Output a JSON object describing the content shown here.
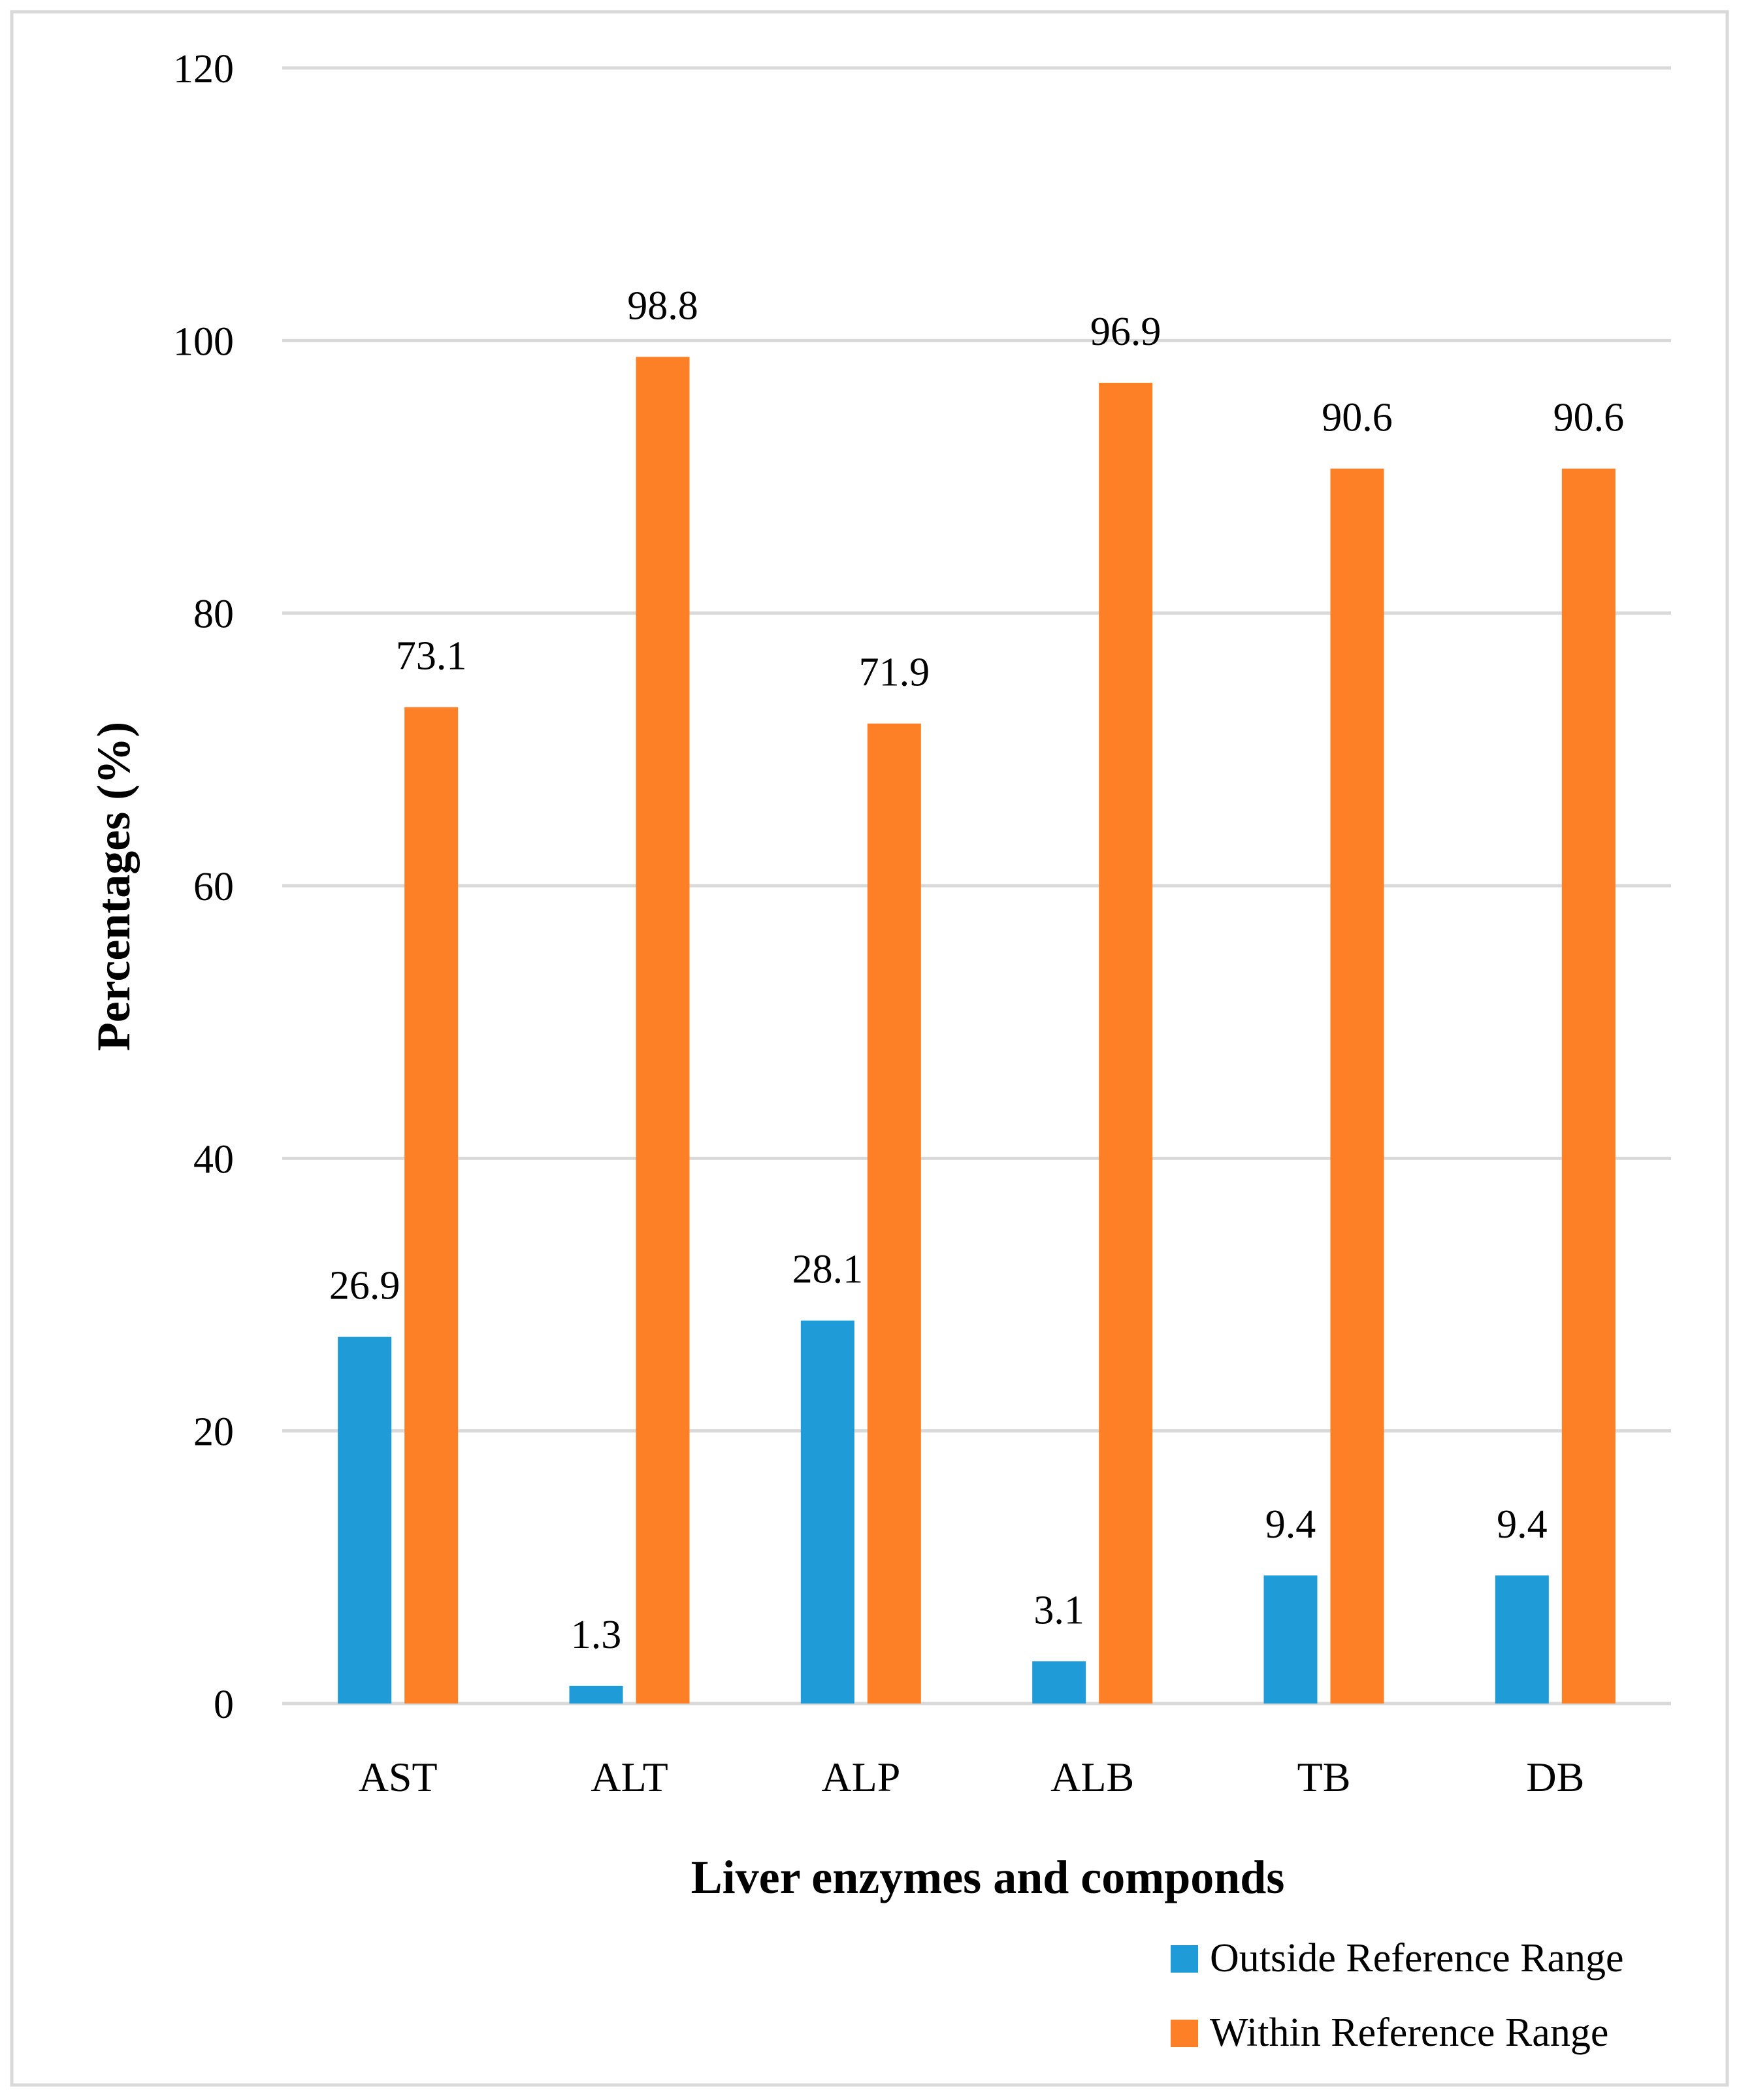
{
  "chart_data": {
    "type": "bar",
    "title": "",
    "xlabel": "Liver enzymes and componds",
    "ylabel": "Percentages (%)",
    "ylim": [
      0,
      120
    ],
    "yticks": [
      "0",
      "20",
      "40",
      "60",
      "80",
      "100",
      "120"
    ],
    "categories": [
      "AST",
      "ALT",
      "ALP",
      "ALB",
      "TB",
      "DB"
    ],
    "series": [
      {
        "name": "Outside Reference Range",
        "color": "#1f9bd7",
        "values": [
          26.9,
          1.3,
          28.1,
          3.1,
          9.4,
          9.4
        ],
        "labels": [
          "26.9",
          "1.3",
          "28.1",
          "3.1",
          "9.4",
          "9.4"
        ]
      },
      {
        "name": "Within Reference Range",
        "color": "#fd7f26",
        "values": [
          73.1,
          98.8,
          71.9,
          96.9,
          90.6,
          90.6
        ],
        "labels": [
          "73.1",
          "98.8",
          "71.9",
          "96.9",
          "90.6",
          "90.6"
        ]
      }
    ],
    "grid": true,
    "legend_position": "bottom-right",
    "gridline_color": "#d9d9d9",
    "border_color": "#d9d9d9"
  }
}
